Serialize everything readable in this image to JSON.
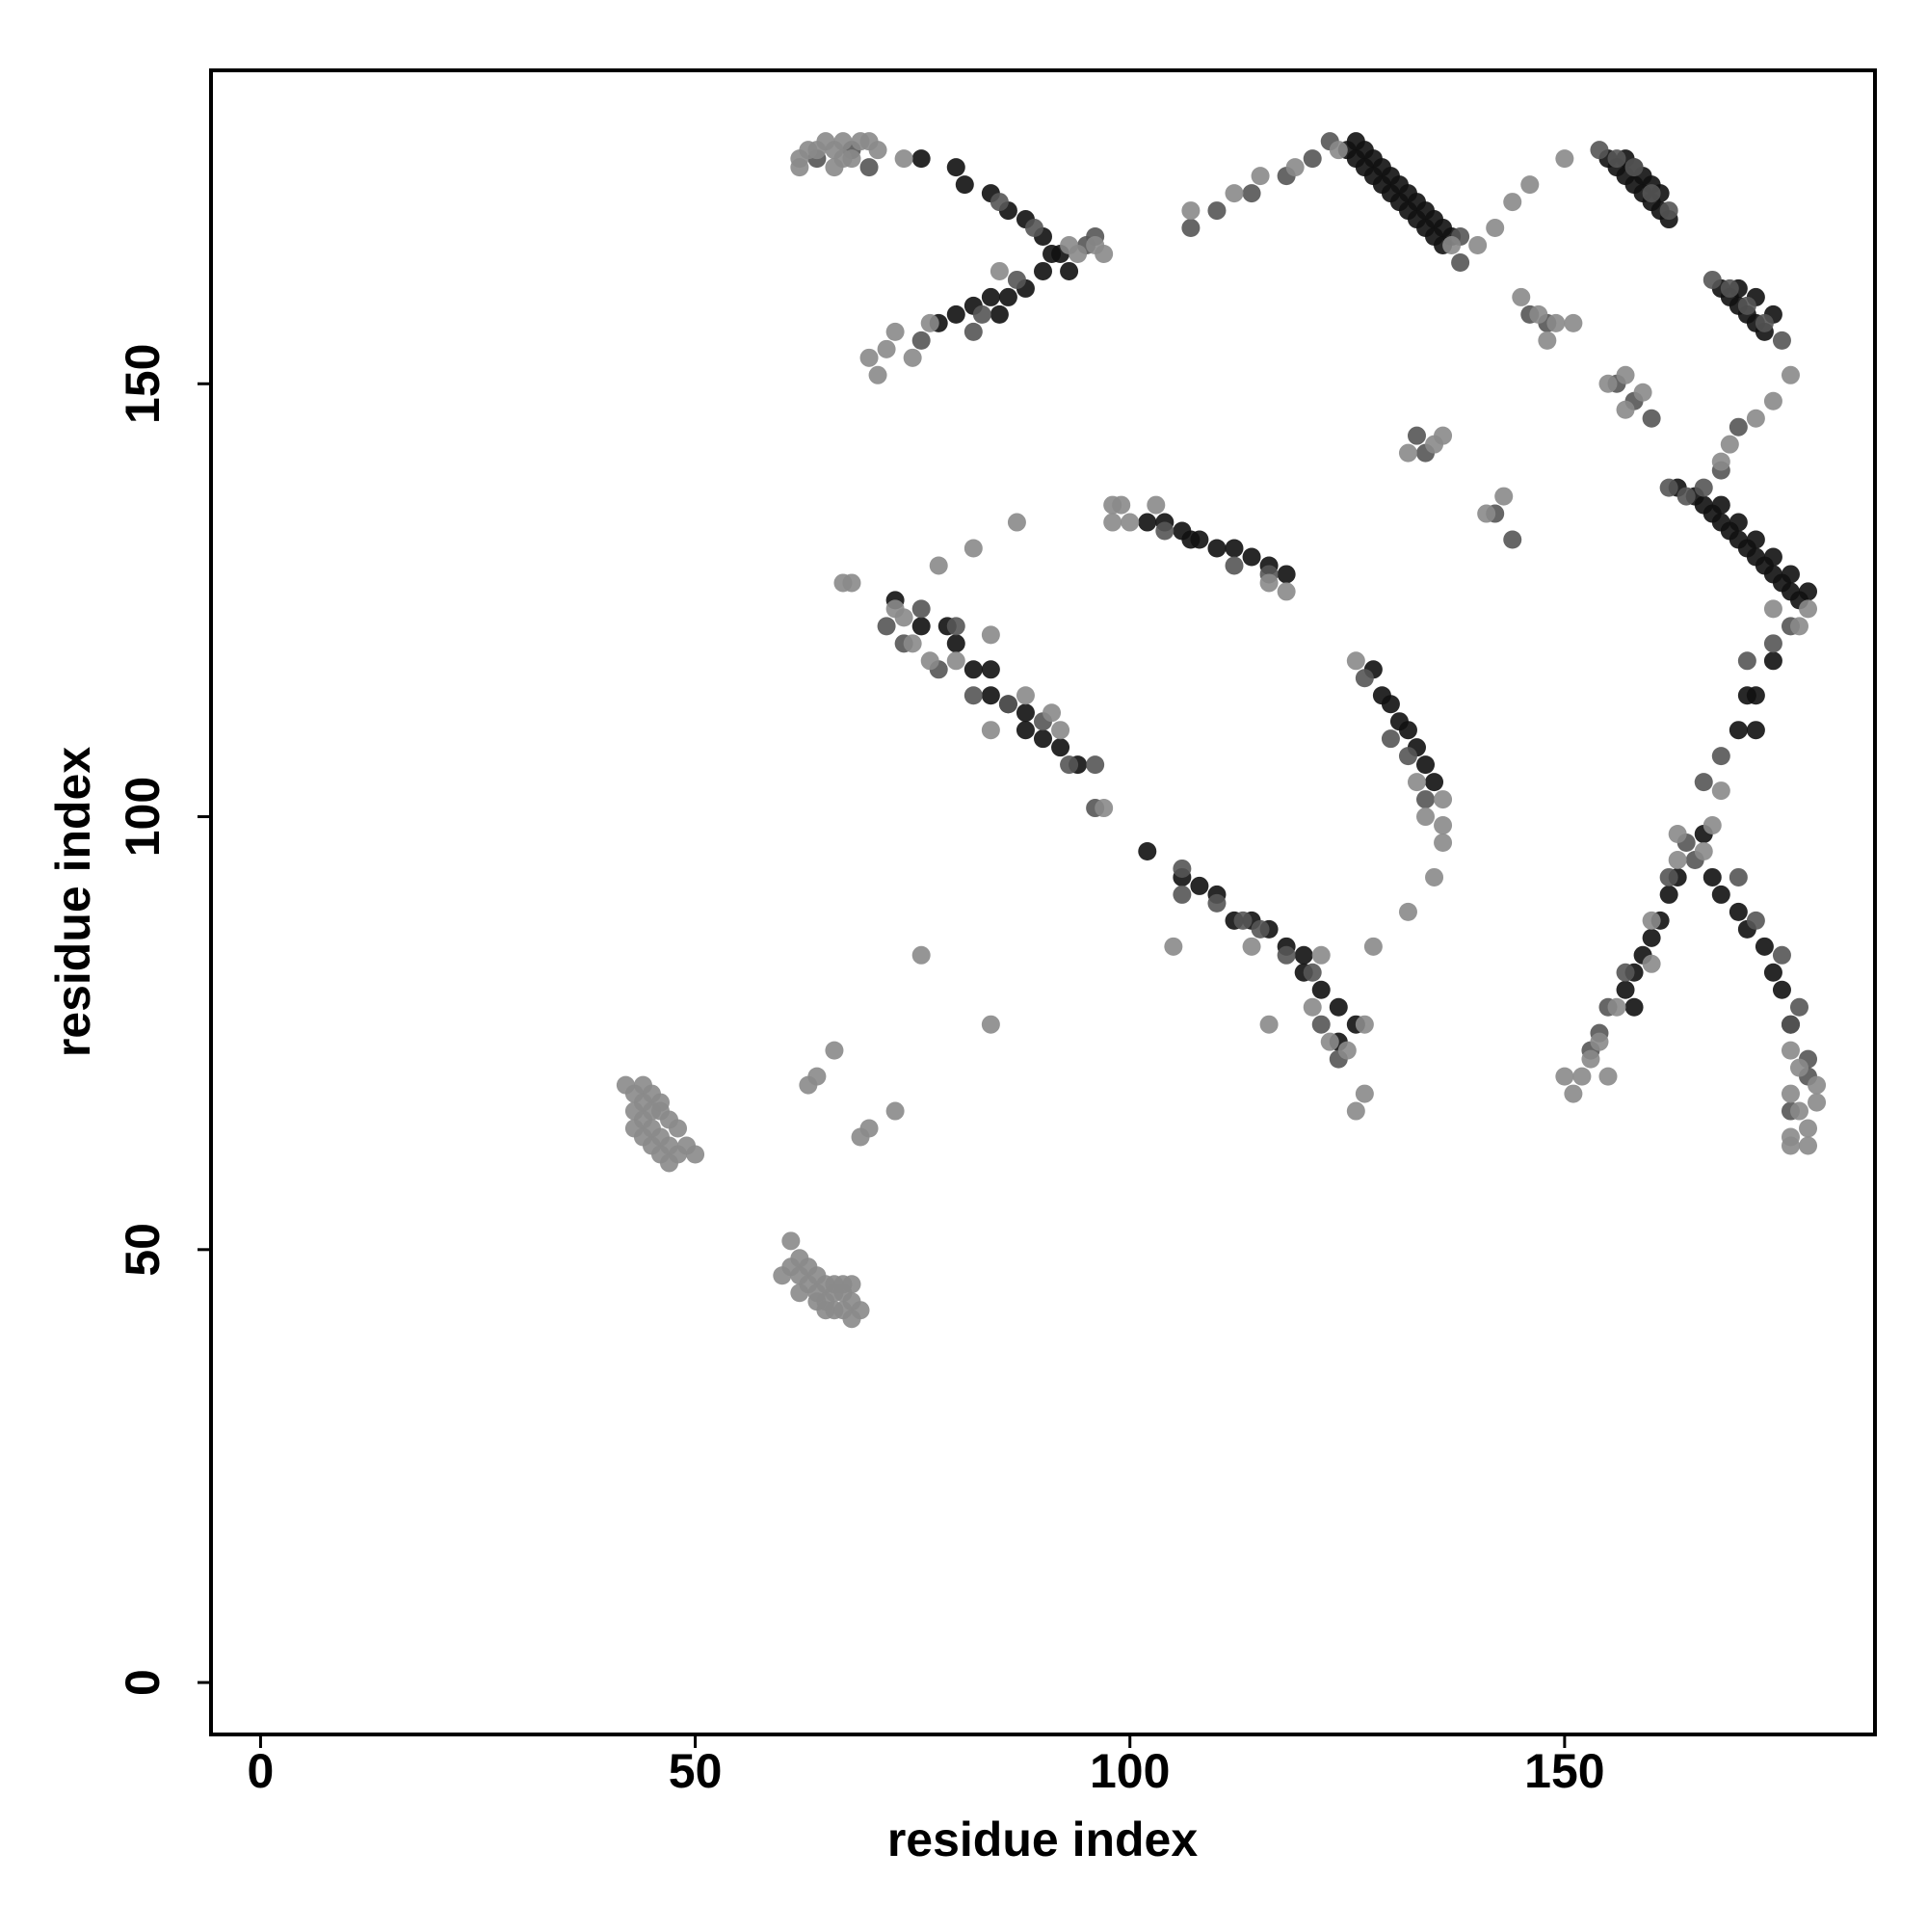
{
  "chart_data": {
    "type": "scatter",
    "xlabel": "residue index",
    "ylabel": "residue index",
    "xlim": [
      -5.7,
      185.7
    ],
    "ylim": [
      -6,
      186.2
    ],
    "xticks": [
      0,
      50,
      100,
      150
    ],
    "yticks": [
      0,
      50,
      100,
      150
    ],
    "series": [
      {
        "color": "#111111",
        "x": [
          76,
          80,
          81,
          84,
          86,
          88,
          90,
          92,
          93,
          78,
          80,
          82,
          84,
          85,
          86,
          88,
          90,
          91,
          125,
          126,
          127,
          128,
          129,
          130,
          131,
          132,
          133,
          134,
          135,
          136,
          126,
          127,
          128,
          129,
          130,
          131,
          132,
          133,
          134,
          135,
          136,
          137,
          155,
          156,
          157,
          158,
          159,
          160,
          161,
          162,
          157,
          158,
          159,
          160,
          161,
          168,
          169,
          170,
          171,
          172,
          173,
          170,
          172,
          174,
          163,
          165,
          166,
          167,
          168,
          169,
          170,
          171,
          172,
          173,
          174,
          175,
          176,
          177,
          168,
          170,
          172,
          174,
          176,
          178,
          174,
          171,
          170,
          172,
          172,
          157,
          158,
          159,
          160,
          161,
          162,
          163,
          158,
          166,
          167,
          168,
          170,
          171,
          173,
          174,
          175,
          176,
          102,
          104,
          106,
          108,
          110,
          112,
          114,
          116,
          118,
          107,
          73,
          76,
          79,
          80,
          82,
          84,
          84,
          86,
          88,
          88,
          90,
          92,
          94,
          102,
          106,
          108,
          110,
          112,
          114,
          116,
          118,
          120,
          120,
          122,
          124,
          126,
          124,
          128,
          129,
          130,
          131,
          132,
          133,
          134,
          135
        ],
        "values": [
          176,
          175,
          173,
          172,
          170,
          169,
          167,
          165,
          163,
          157,
          158,
          159,
          160,
          158,
          160,
          161,
          163,
          165,
          177,
          176,
          175,
          174,
          173,
          172,
          171,
          170,
          169,
          168,
          167,
          166,
          178,
          177,
          176,
          175,
          174,
          173,
          172,
          171,
          170,
          169,
          168,
          167,
          176,
          175,
          174,
          173,
          172,
          171,
          170,
          169,
          176,
          175,
          174,
          173,
          172,
          161,
          160,
          159,
          158,
          157,
          156,
          161,
          160,
          158,
          138,
          137,
          136,
          135,
          134,
          133,
          132,
          131,
          130,
          129,
          128,
          127,
          126,
          125,
          136,
          134,
          132,
          130,
          128,
          126,
          118,
          114,
          110,
          110,
          114,
          80,
          82,
          84,
          86,
          88,
          91,
          93,
          78,
          98,
          93,
          91,
          89,
          87,
          85,
          82,
          80,
          76,
          134,
          134,
          133,
          132,
          131,
          131,
          130,
          129,
          128,
          132,
          125,
          122,
          122,
          120,
          117,
          117,
          114,
          113,
          112,
          110,
          109,
          108,
          106,
          96,
          93,
          92,
          91,
          88,
          88,
          87,
          85,
          84,
          82,
          80,
          78,
          76,
          74,
          117,
          114,
          113,
          111,
          110,
          108,
          106,
          104
        ]
      },
      {
        "color": "#555555",
        "x": [
          64,
          68,
          70,
          85,
          89,
          95,
          96,
          82,
          76,
          83,
          87,
          107,
          110,
          114,
          118,
          121,
          123,
          138,
          138,
          154,
          156,
          158,
          160,
          162,
          167,
          169,
          171,
          173,
          175,
          146,
          148,
          156,
          158,
          160,
          133,
          134,
          142,
          144,
          170,
          168,
          162,
          164,
          166,
          176,
          174,
          171,
          166,
          168,
          164,
          165,
          162,
          157,
          155,
          154,
          153,
          170,
          172,
          175,
          177,
          176,
          178,
          178,
          176,
          116,
          112,
          104,
          72,
          76,
          74,
          78,
          80,
          82,
          86,
          90,
          93,
          96,
          96,
          106,
          106,
          110,
          113,
          115,
          118,
          121,
          122,
          124,
          127,
          130,
          132,
          134
        ],
        "values": [
          176,
          177,
          175,
          171,
          168,
          166,
          167,
          156,
          155,
          158,
          162,
          168,
          170,
          172,
          174,
          176,
          178,
          167,
          164,
          177,
          176,
          175,
          172,
          170,
          162,
          161,
          159,
          157,
          155,
          158,
          157,
          150,
          148,
          146,
          144,
          142,
          135,
          132,
          145,
          140,
          138,
          137,
          138,
          122,
          120,
          118,
          104,
          107,
          97,
          95,
          93,
          82,
          78,
          75,
          73,
          93,
          88,
          84,
          78,
          76,
          72,
          70,
          66,
          128,
          129,
          133,
          122,
          124,
          120,
          117,
          122,
          114,
          113,
          111,
          106,
          106,
          101,
          94,
          91,
          90,
          88,
          87,
          84,
          82,
          76,
          72,
          116,
          109,
          107,
          102
        ]
      },
      {
        "color": "#8a8a8a",
        "x": [
          62,
          63,
          64,
          65,
          66,
          67,
          68,
          69,
          71,
          62,
          66,
          67,
          70,
          74,
          94,
          96,
          72,
          70,
          71,
          73,
          75,
          77,
          85,
          93,
          97,
          107,
          112,
          115,
          119,
          124,
          137,
          140,
          142,
          144,
          146,
          150,
          145,
          147,
          149,
          151,
          148,
          155,
          157,
          157,
          159,
          132,
          135,
          136,
          141,
          143,
          176,
          174,
          172,
          169,
          168,
          177,
          178,
          174,
          168,
          163,
          163,
          166,
          167,
          160,
          160,
          156,
          154,
          153,
          152,
          155,
          150,
          151,
          176,
          177,
          176,
          177,
          178,
          176,
          178,
          179,
          179,
          176,
          67,
          68,
          78,
          82,
          87,
          98,
          99,
          98,
          100,
          103,
          118,
          116,
          73,
          74,
          75,
          77,
          80,
          84,
          84,
          88,
          92,
          91,
          97,
          105,
          114,
          122,
          116,
          121,
          123,
          125,
          127,
          126,
          127,
          128,
          132,
          135,
          136,
          136,
          134,
          136,
          133,
          126,
          42,
          43,
          44,
          45,
          46,
          47,
          48,
          49,
          43,
          44,
          45,
          46,
          47,
          48,
          43,
          44,
          45,
          46,
          47,
          50,
          44,
          46,
          45,
          61,
          61,
          60,
          62,
          63,
          64,
          65,
          66,
          67,
          68,
          62,
          63,
          64,
          65,
          66,
          67,
          68,
          69,
          62,
          64,
          65,
          66,
          67,
          68,
          76,
          84,
          66,
          63,
          64,
          69,
          70,
          73
        ],
        "values": [
          176,
          177,
          177,
          178,
          177,
          178,
          176,
          178,
          177,
          175,
          175,
          176,
          178,
          176,
          165,
          166,
          154,
          153,
          151,
          156,
          153,
          157,
          163,
          166,
          165,
          170,
          172,
          174,
          175,
          177,
          166,
          166,
          168,
          171,
          173,
          176,
          160,
          158,
          157,
          157,
          155,
          150,
          151,
          147,
          149,
          142,
          143,
          144,
          135,
          137,
          151,
          148,
          146,
          143,
          141,
          122,
          124,
          124,
          103,
          95,
          98,
          96,
          99,
          88,
          83,
          78,
          74,
          72,
          70,
          70,
          70,
          68,
          73,
          71,
          68,
          66,
          64,
          63,
          62,
          69,
          67,
          62,
          127,
          127,
          129,
          131,
          134,
          136,
          136,
          134,
          134,
          136,
          126,
          127,
          124,
          123,
          120,
          118,
          118,
          121,
          110,
          114,
          110,
          112,
          101,
          85,
          85,
          84,
          76,
          78,
          74,
          73,
          76,
          66,
          68,
          85,
          89,
          93,
          97,
          99,
          100,
          102,
          104,
          118,
          69,
          68,
          69,
          68,
          66,
          65,
          64,
          62,
          66,
          65,
          64,
          63,
          62,
          61,
          64,
          63,
          62,
          61,
          60,
          61,
          67,
          67,
          66,
          51,
          48,
          47,
          47,
          46,
          45,
          44,
          43,
          43,
          42,
          49,
          48,
          47,
          46,
          46,
          45,
          44,
          43,
          45,
          44,
          43,
          45,
          46,
          46,
          84,
          76,
          73,
          69,
          70,
          63,
          64,
          66
        ]
      }
    ]
  }
}
